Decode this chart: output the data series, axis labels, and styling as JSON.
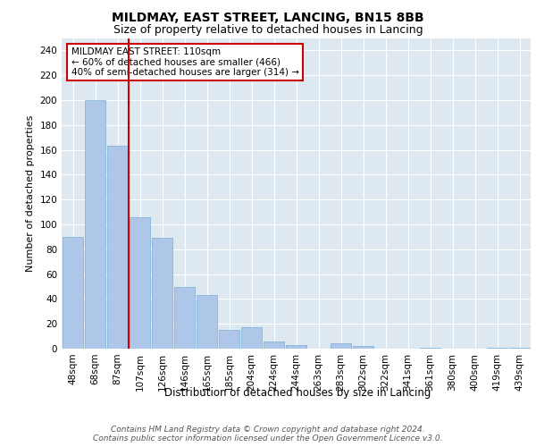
{
  "title": "MILDMAY, EAST STREET, LANCING, BN15 8BB",
  "subtitle": "Size of property relative to detached houses in Lancing",
  "xlabel": "Distribution of detached houses by size in Lancing",
  "ylabel": "Number of detached properties",
  "categories": [
    "48sqm",
    "68sqm",
    "87sqm",
    "107sqm",
    "126sqm",
    "146sqm",
    "165sqm",
    "185sqm",
    "204sqm",
    "224sqm",
    "244sqm",
    "263sqm",
    "283sqm",
    "302sqm",
    "322sqm",
    "341sqm",
    "361sqm",
    "380sqm",
    "400sqm",
    "419sqm",
    "439sqm"
  ],
  "values": [
    90,
    200,
    163,
    106,
    89,
    50,
    43,
    15,
    17,
    6,
    3,
    0,
    4,
    2,
    0,
    0,
    1,
    0,
    0,
    1,
    1
  ],
  "bar_color": "#aec6e8",
  "bar_edge_color": "#7bafd4",
  "vline_color": "#cc0000",
  "vline_x": 2.5,
  "annotation_text": "MILDMAY EAST STREET: 110sqm\n← 60% of detached houses are smaller (466)\n40% of semi-detached houses are larger (314) →",
  "annotation_box_color": "#cc0000",
  "ylim": [
    0,
    250
  ],
  "yticks": [
    0,
    20,
    40,
    60,
    80,
    100,
    120,
    140,
    160,
    180,
    200,
    220,
    240
  ],
  "plot_bg_color": "#dde8f0",
  "footer": "Contains HM Land Registry data © Crown copyright and database right 2024.\nContains public sector information licensed under the Open Government Licence v3.0.",
  "title_fontsize": 10,
  "subtitle_fontsize": 9,
  "xlabel_fontsize": 8.5,
  "ylabel_fontsize": 8,
  "tick_fontsize": 7.5,
  "footer_fontsize": 6.5,
  "annotation_fontsize": 7.5
}
